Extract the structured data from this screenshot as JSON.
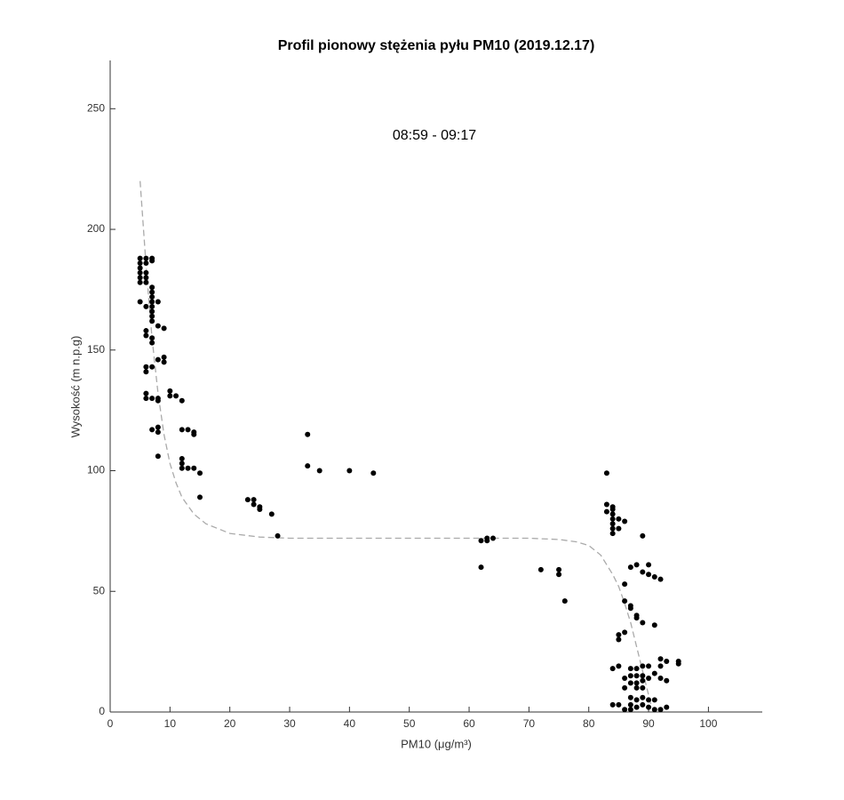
{
  "chart_data": {
    "type": "scatter",
    "title": "Profil pionowy stężenia pyłu PM10 (2019.12.17)",
    "annotation": "08:59 - 09:17",
    "xlabel": "PM10 (μg/m³)",
    "ylabel": "Wysokość (m n.p.g)",
    "xlim": [
      0,
      109
    ],
    "ylim": [
      0,
      270
    ],
    "xticks": [
      0,
      10,
      20,
      30,
      40,
      50,
      60,
      70,
      80,
      90,
      100
    ],
    "yticks": [
      0,
      50,
      100,
      150,
      200,
      250
    ],
    "grid": false,
    "series": [
      {
        "type": "scatter",
        "color": "#000000",
        "x": [
          5,
          5,
          5,
          5,
          5,
          5,
          6,
          6,
          6,
          6,
          6,
          7,
          7,
          7,
          7,
          7,
          7,
          7,
          7,
          7,
          7,
          5,
          6,
          8,
          6,
          6,
          7,
          7,
          8,
          9,
          6,
          6,
          7,
          8,
          9,
          9,
          6,
          6,
          7,
          8,
          8,
          10,
          10,
          11,
          12,
          7,
          8,
          8,
          12,
          13,
          14,
          14,
          12,
          12,
          12,
          13,
          14,
          15,
          8,
          15,
          23,
          24,
          24,
          25,
          25,
          27,
          28,
          33,
          33,
          35,
          40,
          44,
          62,
          62,
          63,
          63,
          64,
          72,
          75,
          75,
          76,
          83,
          83,
          83,
          84,
          84,
          84,
          84,
          84,
          84,
          84,
          85,
          85,
          86,
          89,
          87,
          88,
          89,
          90,
          90,
          91,
          92,
          86,
          86,
          87,
          87,
          88,
          88,
          89,
          91,
          85,
          85,
          86,
          84,
          85,
          86,
          86,
          87,
          87,
          87,
          87,
          87,
          87,
          88,
          88,
          88,
          88,
          88,
          88,
          89,
          89,
          89,
          89,
          89,
          89,
          90,
          90,
          90,
          90,
          91,
          91,
          91,
          92,
          92,
          92,
          92,
          93,
          93,
          93,
          95,
          95,
          84,
          85,
          86
        ],
        "y": [
          188,
          186,
          184,
          182,
          180,
          178,
          188,
          186,
          182,
          180,
          178,
          188,
          187,
          176,
          174,
          172,
          170,
          168,
          166,
          164,
          162,
          170,
          168,
          170,
          158,
          156,
          155,
          153,
          160,
          159,
          143,
          141,
          143,
          146,
          147,
          145,
          132,
          130,
          130,
          129,
          130,
          133,
          131,
          131,
          129,
          117,
          118,
          116,
          117,
          117,
          116,
          115,
          105,
          103,
          101,
          101,
          101,
          99,
          106,
          89,
          88,
          88,
          86,
          85,
          84,
          82,
          73,
          115,
          102,
          100,
          100,
          99,
          71,
          60,
          72,
          71,
          72,
          59,
          59,
          57,
          46,
          99,
          86,
          83,
          85,
          84,
          82,
          80,
          78,
          76,
          74,
          80,
          76,
          79,
          73,
          60,
          61,
          58,
          61,
          57,
          56,
          55,
          53,
          46,
          44,
          43,
          40,
          39,
          37,
          36,
          32,
          30,
          33,
          18,
          19,
          14,
          10,
          18,
          15,
          12,
          6,
          3,
          1,
          18,
          15,
          12,
          10,
          5,
          2,
          19,
          15,
          13,
          10,
          6,
          3,
          19,
          14,
          5,
          2,
          16,
          5,
          1,
          22,
          19,
          14,
          1,
          21,
          13,
          2,
          21,
          20,
          3,
          3,
          1
        ]
      },
      {
        "type": "line",
        "color": "#aaaaaa",
        "linestyle": "dashed",
        "x": [
          5,
          6,
          7,
          8,
          9,
          10,
          11,
          12,
          14,
          16,
          20,
          25,
          30,
          40,
          50,
          60,
          70,
          75,
          78,
          80,
          82,
          84,
          85,
          86,
          87,
          88,
          89,
          90,
          90.5
        ],
        "y": [
          220,
          185,
          155,
          132,
          115,
          103,
          95,
          89,
          82,
          78,
          74,
          72.5,
          72,
          72,
          72,
          72,
          72,
          71.5,
          70.5,
          69,
          65,
          57,
          52,
          45,
          37,
          27,
          17,
          7,
          2
        ]
      }
    ]
  }
}
